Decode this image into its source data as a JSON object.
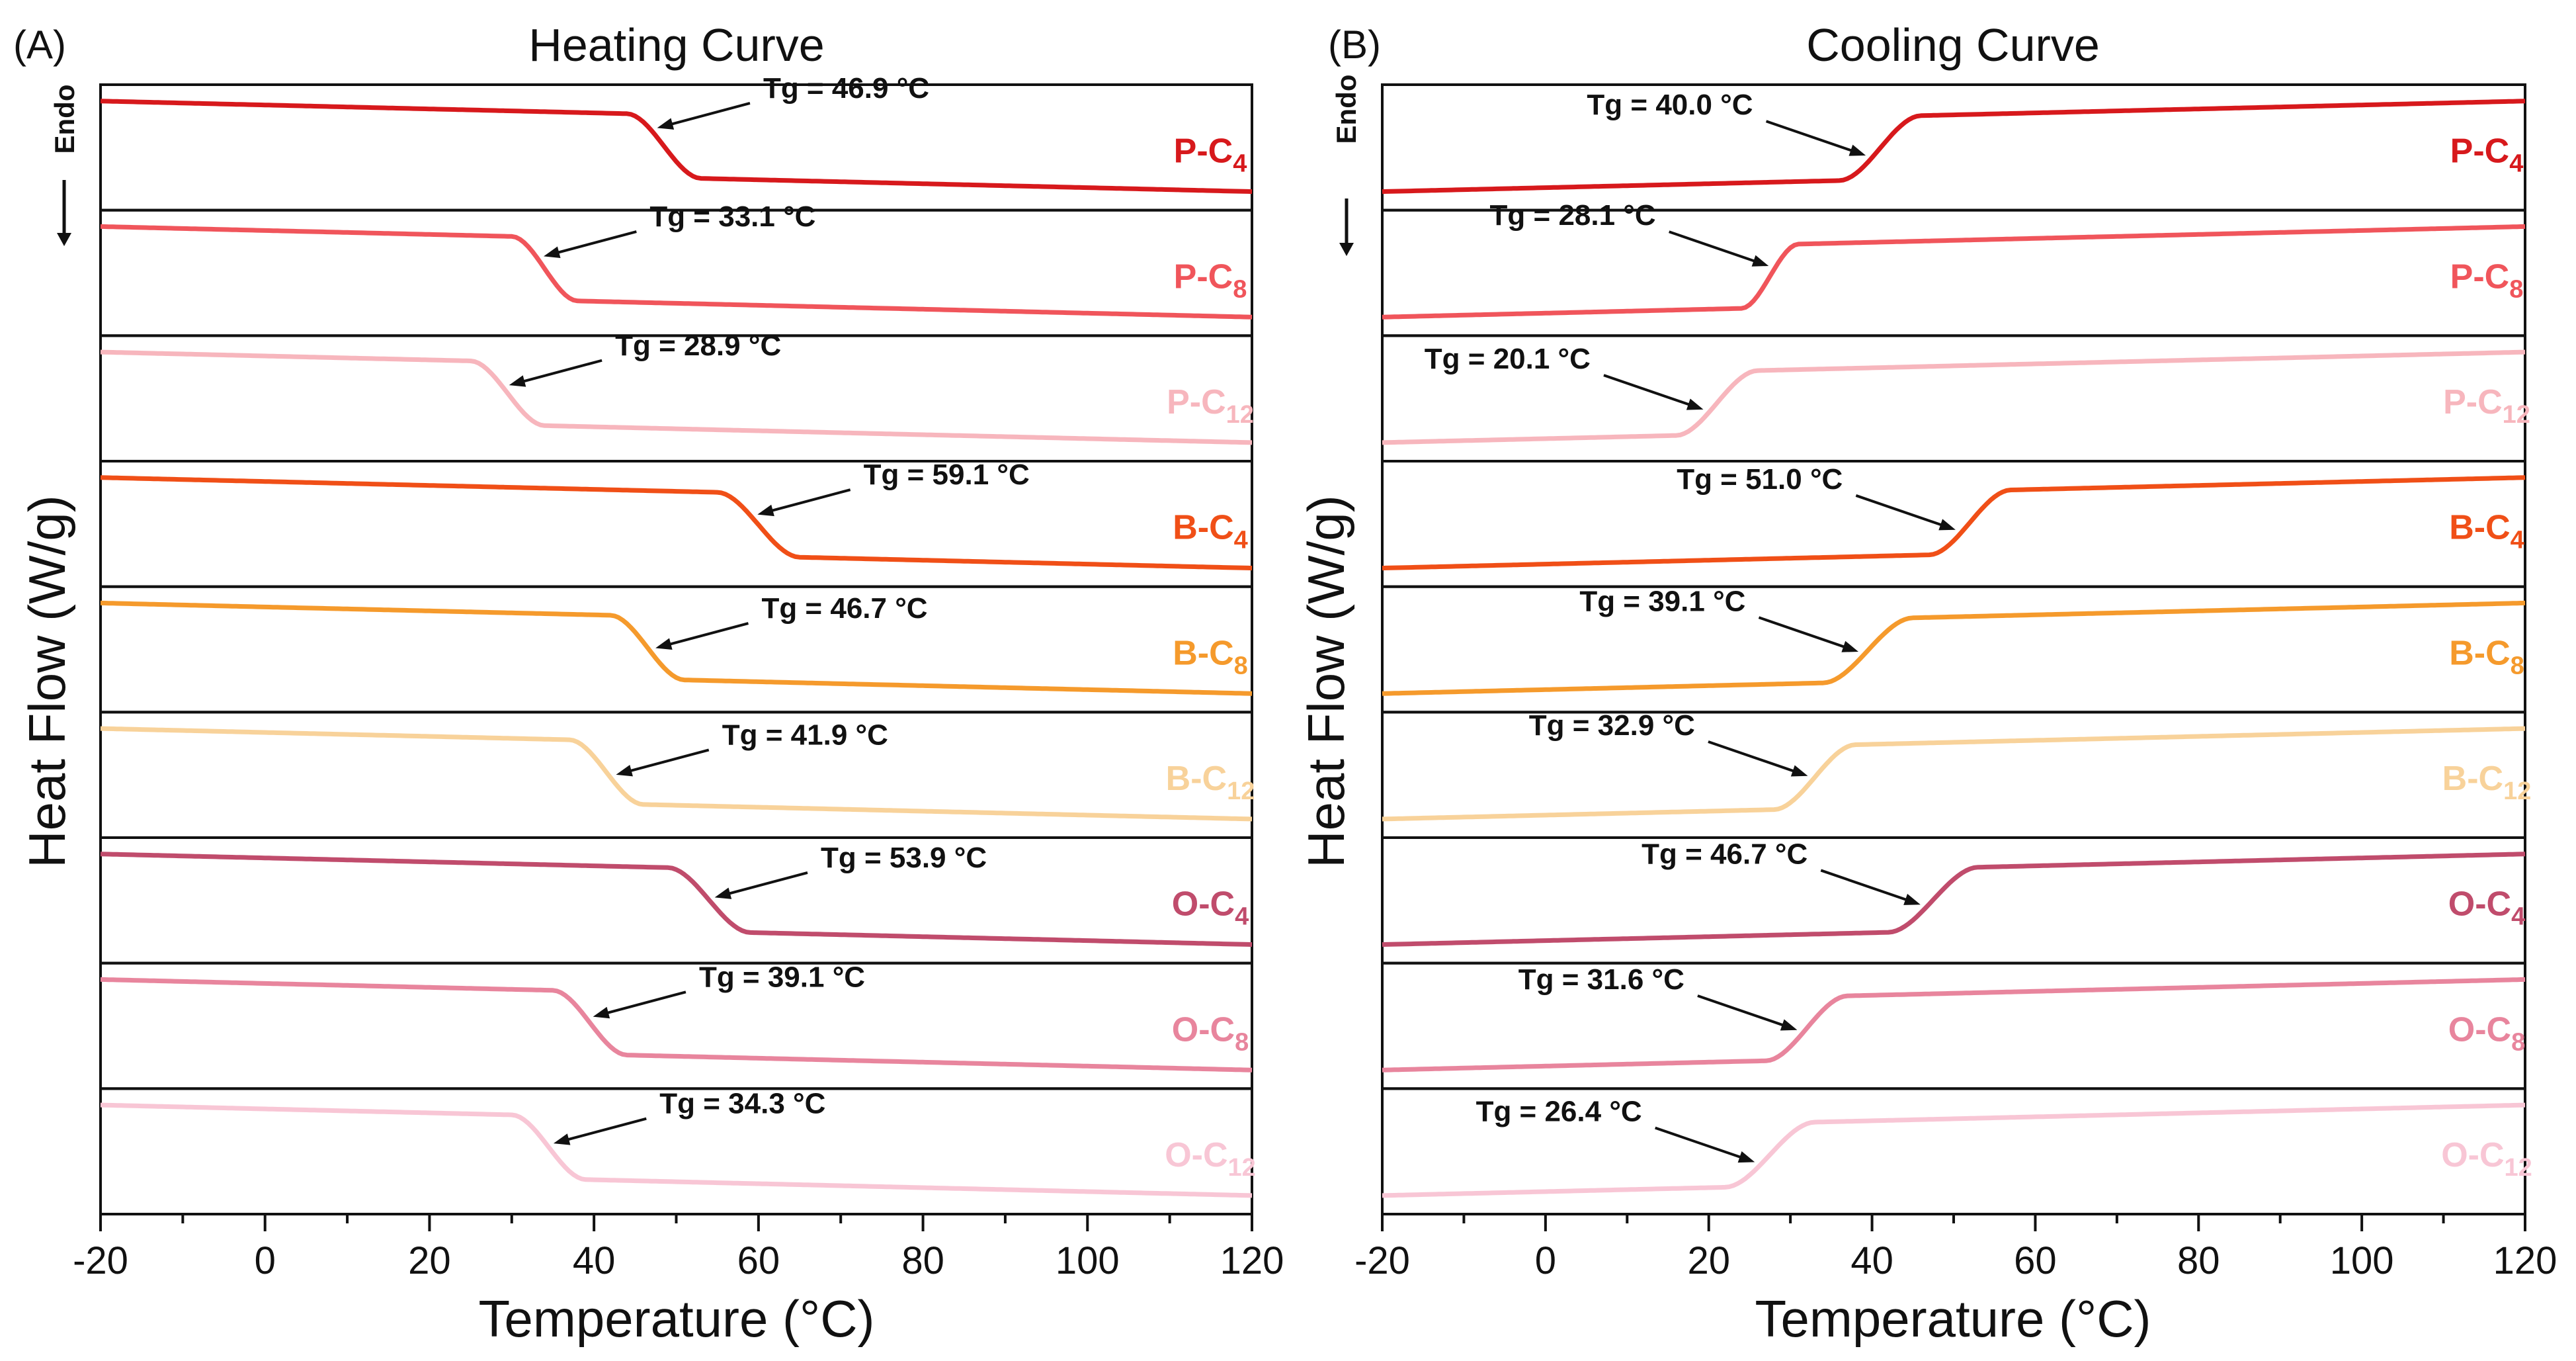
{
  "chart_data": [
    {
      "panel_id": "A",
      "type": "line",
      "panel_letter": "(A)",
      "title": "Heating Curve",
      "xlabel": "Temperature (°C)",
      "ylabel": "Heat Flow (W/g)",
      "endo_label": "Endo",
      "xlim": [
        -20,
        120
      ],
      "xticks": [
        "-20",
        "0",
        "20",
        "40",
        "60",
        "80",
        "100",
        "120"
      ],
      "series": [
        {
          "name": "P-C4",
          "prefix": "P-C",
          "sub": "4",
          "color": "#d7191c",
          "tg": 46.9,
          "tg_label": "Tg = 46.9 °C",
          "y_start": 0.92,
          "y_end": 0.1,
          "step_low": 44,
          "step_high": 53
        },
        {
          "name": "P-C8",
          "prefix": "P-C",
          "sub": "8",
          "color": "#f0555b",
          "tg": 33.1,
          "tg_label": "Tg = 33.1 °C",
          "y_start": 0.92,
          "y_end": 0.1,
          "step_low": 30,
          "step_high": 38
        },
        {
          "name": "P-C12",
          "prefix": "P-C",
          "sub": "12",
          "color": "#f7b6bd",
          "tg": 28.9,
          "tg_label": "Tg = 28.9 °C",
          "y_start": 0.92,
          "y_end": 0.1,
          "step_low": 25,
          "step_high": 34
        },
        {
          "name": "B-C4",
          "prefix": "B-C",
          "sub": "4",
          "color": "#f04f17",
          "tg": 59.1,
          "tg_label": "Tg = 59.1 °C",
          "y_start": 0.92,
          "y_end": 0.1,
          "step_low": 55,
          "step_high": 65
        },
        {
          "name": "B-C8",
          "prefix": "B-C",
          "sub": "8",
          "color": "#f59a2c",
          "tg": 46.7,
          "tg_label": "Tg = 46.7 °C",
          "y_start": 0.92,
          "y_end": 0.1,
          "step_low": 42,
          "step_high": 51
        },
        {
          "name": "B-C12",
          "prefix": "B-C",
          "sub": "12",
          "color": "#f8d29a",
          "tg": 41.9,
          "tg_label": "Tg = 41.9 °C",
          "y_start": 0.92,
          "y_end": 0.1,
          "step_low": 37,
          "step_high": 46
        },
        {
          "name": "O-C4",
          "prefix": "O-C",
          "sub": "4",
          "color": "#c04c6c",
          "tg": 53.9,
          "tg_label": "Tg = 53.9 °C",
          "y_start": 0.92,
          "y_end": 0.1,
          "step_low": 49,
          "step_high": 59
        },
        {
          "name": "O-C8",
          "prefix": "O-C",
          "sub": "8",
          "color": "#e8859d",
          "tg": 39.1,
          "tg_label": "Tg = 39.1 °C",
          "y_start": 0.92,
          "y_end": 0.1,
          "step_low": 35,
          "step_high": 44
        },
        {
          "name": "O-C12",
          "prefix": "O-C",
          "sub": "12",
          "color": "#f8c6d5",
          "tg": 34.3,
          "tg_label": "Tg = 34.3 °C",
          "y_start": 0.92,
          "y_end": 0.1,
          "step_low": 30,
          "step_high": 39
        }
      ]
    },
    {
      "panel_id": "B",
      "type": "line",
      "panel_letter": "(B)",
      "title": "Cooling Curve",
      "xlabel": "Temperature (°C)",
      "ylabel": "Heat Flow (W/g)",
      "endo_label": "Endo",
      "xlim": [
        -20,
        120
      ],
      "xticks": [
        "-20",
        "0",
        "20",
        "40",
        "60",
        "80",
        "100",
        "120"
      ],
      "series": [
        {
          "name": "P-C4",
          "prefix": "P-C",
          "sub": "4",
          "color": "#d7191c",
          "tg": 40.0,
          "tg_label": "Tg = 40.0 °C",
          "y_start": 0.1,
          "y_end": 0.92,
          "step_low": 36,
          "step_high": 46
        },
        {
          "name": "P-C8",
          "prefix": "P-C",
          "sub": "8",
          "color": "#f0555b",
          "tg": 28.1,
          "tg_label": "Tg = 28.1 °C",
          "y_start": 0.1,
          "y_end": 0.92,
          "step_low": 24,
          "step_high": 31
        },
        {
          "name": "P-C12",
          "prefix": "P-C",
          "sub": "12",
          "color": "#f7b6bd",
          "tg": 20.1,
          "tg_label": "Tg = 20.1 °C",
          "y_start": 0.1,
          "y_end": 0.92,
          "step_low": 16,
          "step_high": 26
        },
        {
          "name": "B-C4",
          "prefix": "B-C",
          "sub": "4",
          "color": "#f04f17",
          "tg": 51.0,
          "tg_label": "Tg = 51.0 °C",
          "y_start": 0.1,
          "y_end": 0.92,
          "step_low": 47,
          "step_high": 57
        },
        {
          "name": "B-C8",
          "prefix": "B-C",
          "sub": "8",
          "color": "#f59a2c",
          "tg": 39.1,
          "tg_label": "Tg = 39.1 °C",
          "y_start": 0.1,
          "y_end": 0.92,
          "step_low": 34,
          "step_high": 45
        },
        {
          "name": "B-C12",
          "prefix": "B-C",
          "sub": "12",
          "color": "#f8d29a",
          "tg": 32.9,
          "tg_label": "Tg = 32.9 °C",
          "y_start": 0.1,
          "y_end": 0.92,
          "step_low": 28,
          "step_high": 38
        },
        {
          "name": "O-C4",
          "prefix": "O-C",
          "sub": "4",
          "color": "#c04c6c",
          "tg": 46.7,
          "tg_label": "Tg = 46.7 °C",
          "y_start": 0.1,
          "y_end": 0.92,
          "step_low": 42,
          "step_high": 53
        },
        {
          "name": "O-C8",
          "prefix": "O-C",
          "sub": "8",
          "color": "#e8859d",
          "tg": 31.6,
          "tg_label": "Tg = 31.6 °C",
          "y_start": 0.1,
          "y_end": 0.92,
          "step_low": 27,
          "step_high": 37
        },
        {
          "name": "O-C12",
          "prefix": "O-C",
          "sub": "12",
          "color": "#f8c6d5",
          "tg": 26.4,
          "tg_label": "Tg = 26.4 °C",
          "y_start": 0.1,
          "y_end": 0.92,
          "step_low": 22,
          "step_high": 33
        }
      ]
    }
  ]
}
